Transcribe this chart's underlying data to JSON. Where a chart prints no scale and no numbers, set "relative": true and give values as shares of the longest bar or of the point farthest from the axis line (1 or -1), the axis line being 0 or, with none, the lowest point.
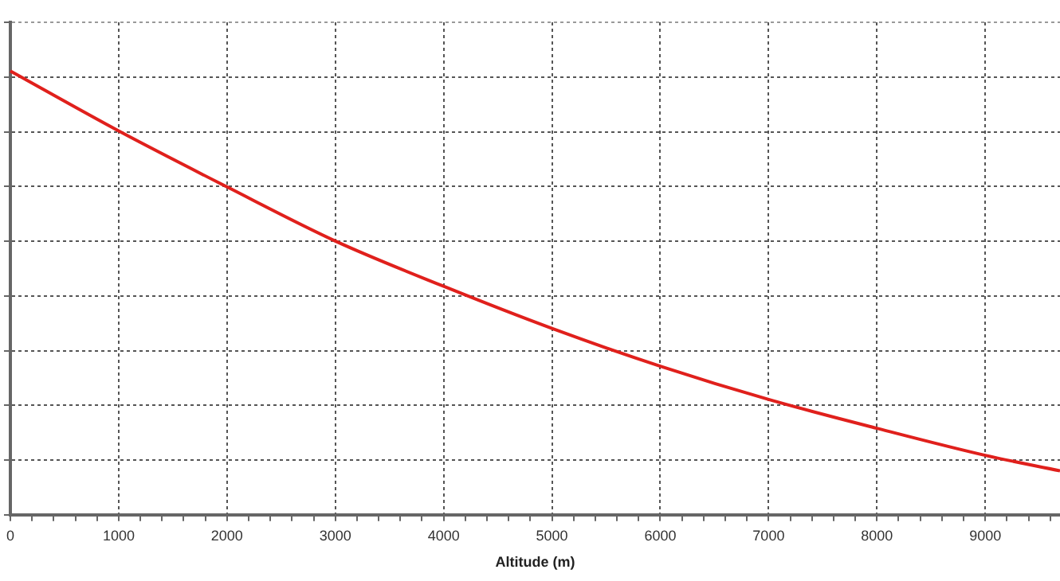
{
  "chart_data": {
    "type": "line",
    "xlabel": "Altitude (m)",
    "relative": true,
    "tick_labels": "x",
    "grid": true,
    "legend": false,
    "marker": "none",
    "line_style": "solid",
    "x": [
      0,
      1000,
      2000,
      3000,
      4000,
      5000,
      6000,
      7000,
      8000,
      9000,
      9690
    ],
    "xlim": [
      0,
      9690
    ],
    "xticks": [
      0,
      {
        "value": 200,
        "label": null
      },
      {
        "value": 400,
        "label": null
      },
      {
        "value": 600,
        "label": null
      },
      {
        "value": 800,
        "label": null
      },
      1000,
      {
        "value": 1200,
        "label": null
      },
      {
        "value": 1400,
        "label": null
      },
      {
        "value": 1600,
        "label": null
      },
      {
        "value": 1800,
        "label": null
      },
      2000,
      {
        "value": 2200,
        "label": null
      },
      {
        "value": 2400,
        "label": null
      },
      {
        "value": 2600,
        "label": null
      },
      {
        "value": 2800,
        "label": null
      },
      3000,
      {
        "value": 3200,
        "label": null
      },
      {
        "value": 3400,
        "label": null
      },
      {
        "value": 3600,
        "label": null
      },
      {
        "value": 3800,
        "label": null
      },
      4000,
      {
        "value": 4200,
        "label": null
      },
      {
        "value": 4400,
        "label": null
      },
      {
        "value": 4600,
        "label": null
      },
      {
        "value": 4800,
        "label": null
      },
      5000,
      {
        "value": 5200,
        "label": null
      },
      {
        "value": 5400,
        "label": null
      },
      {
        "value": 5600,
        "label": null
      },
      {
        "value": 5800,
        "label": null
      },
      6000,
      {
        "value": 6200,
        "label": null
      },
      {
        "value": 6400,
        "label": null
      },
      {
        "value": 6600,
        "label": null
      },
      {
        "value": 6800,
        "label": null
      },
      7000,
      {
        "value": 7200,
        "label": null
      },
      {
        "value": 7400,
        "label": null
      },
      {
        "value": 7600,
        "label": null
      },
      {
        "value": 7800,
        "label": null
      },
      8000,
      {
        "value": 8200,
        "label": null
      },
      {
        "value": 8400,
        "label": null
      },
      {
        "value": 8600,
        "label": null
      },
      {
        "value": 8800,
        "label": null
      },
      9000,
      {
        "value": 9200,
        "label": null
      },
      {
        "value": 9400,
        "label": null
      },
      {
        "value": 9600,
        "label": null
      }
    ],
    "series": [
      {
        "color": "#e0201c",
        "values": [
          1,
          0.865,
          0.739,
          0.617,
          0.515,
          0.42,
          0.335,
          0.26,
          0.195,
          0.134,
          0.099
        ]
      }
    ]
  }
}
